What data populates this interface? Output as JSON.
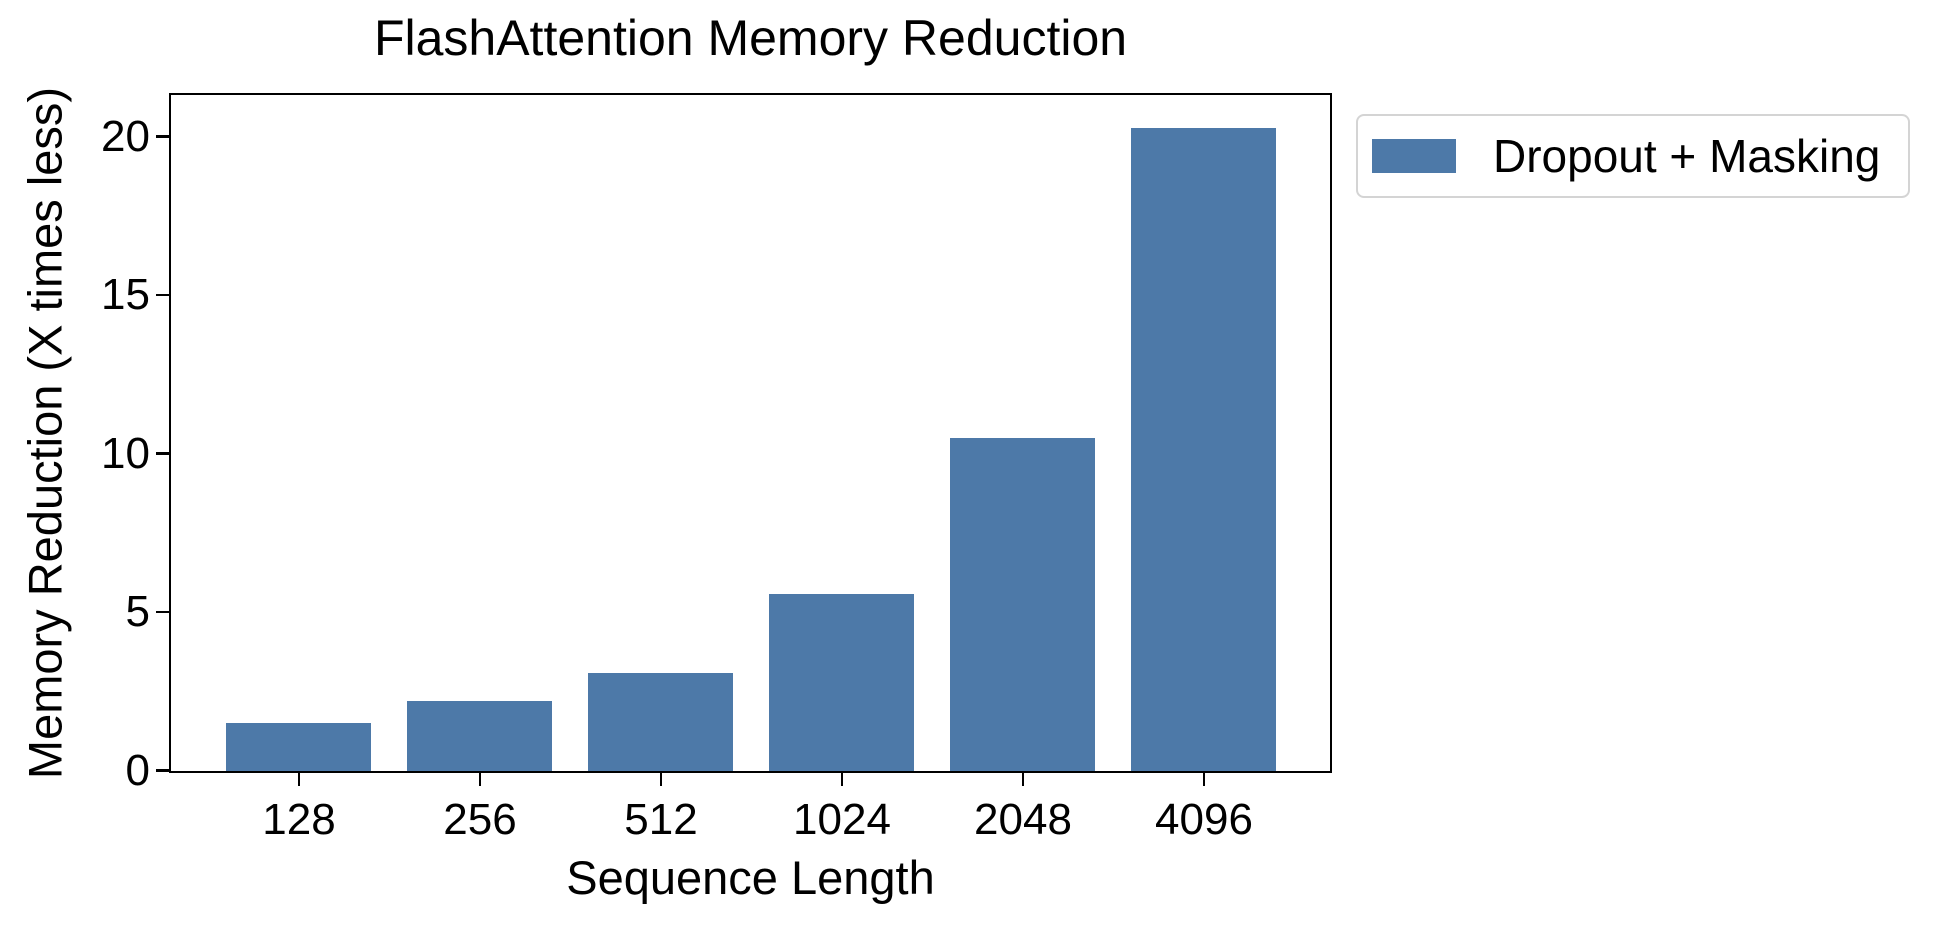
{
  "chart_data": {
    "type": "bar",
    "title": "FlashAttention Memory Reduction",
    "xlabel": "Sequence Length",
    "ylabel": "Memory Reduction (X times less)",
    "categories": [
      "128",
      "256",
      "512",
      "1024",
      "2048",
      "4096"
    ],
    "series": [
      {
        "name": "Dropout + Masking",
        "values": [
          1.5,
          2.2,
          3.1,
          5.6,
          10.5,
          20.3
        ]
      }
    ],
    "yticks": [
      0,
      5,
      10,
      15,
      20
    ],
    "ylim": [
      0,
      21.3
    ],
    "grid": false,
    "legend_position": "outside upper right",
    "bar_color": "#4d79a8"
  },
  "legend": {
    "label": "Dropout + Masking",
    "swatch_color": "#4d79a8",
    "border_color": "#d4d4d4"
  },
  "colors": {
    "bar": "#4d79a8",
    "text": "#000000",
    "axes": "#000000",
    "background": "#ffffff"
  }
}
